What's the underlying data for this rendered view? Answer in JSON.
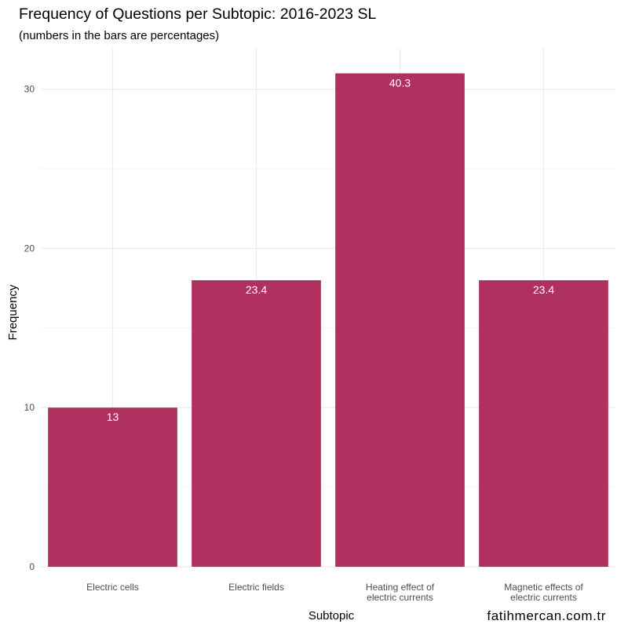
{
  "chart_data": {
    "type": "bar",
    "title": "Frequency of Questions per Subtopic: 2016-2023 SL",
    "subtitle": "(numbers in the bars are percentages)",
    "xlabel": "Subtopic",
    "ylabel": "Frequency",
    "categories": [
      [
        "Electric cells"
      ],
      [
        "Electric fields"
      ],
      [
        "Heating effect of",
        "electric currents"
      ],
      [
        "Magnetic effects of",
        "electric currents"
      ]
    ],
    "values": [
      10,
      18,
      31,
      18
    ],
    "bar_labels": [
      "13",
      "23.4",
      "40.3",
      "23.4"
    ],
    "ylim": [
      0,
      32.55
    ],
    "yticks": [
      0,
      10,
      20,
      30
    ],
    "ytick_labels": [
      "0",
      "10",
      "20",
      "30"
    ],
    "grid": true,
    "bar_color": "#B03060",
    "grid_color": "#EBEBEB"
  },
  "watermark": "fatihmercan.com.tr"
}
